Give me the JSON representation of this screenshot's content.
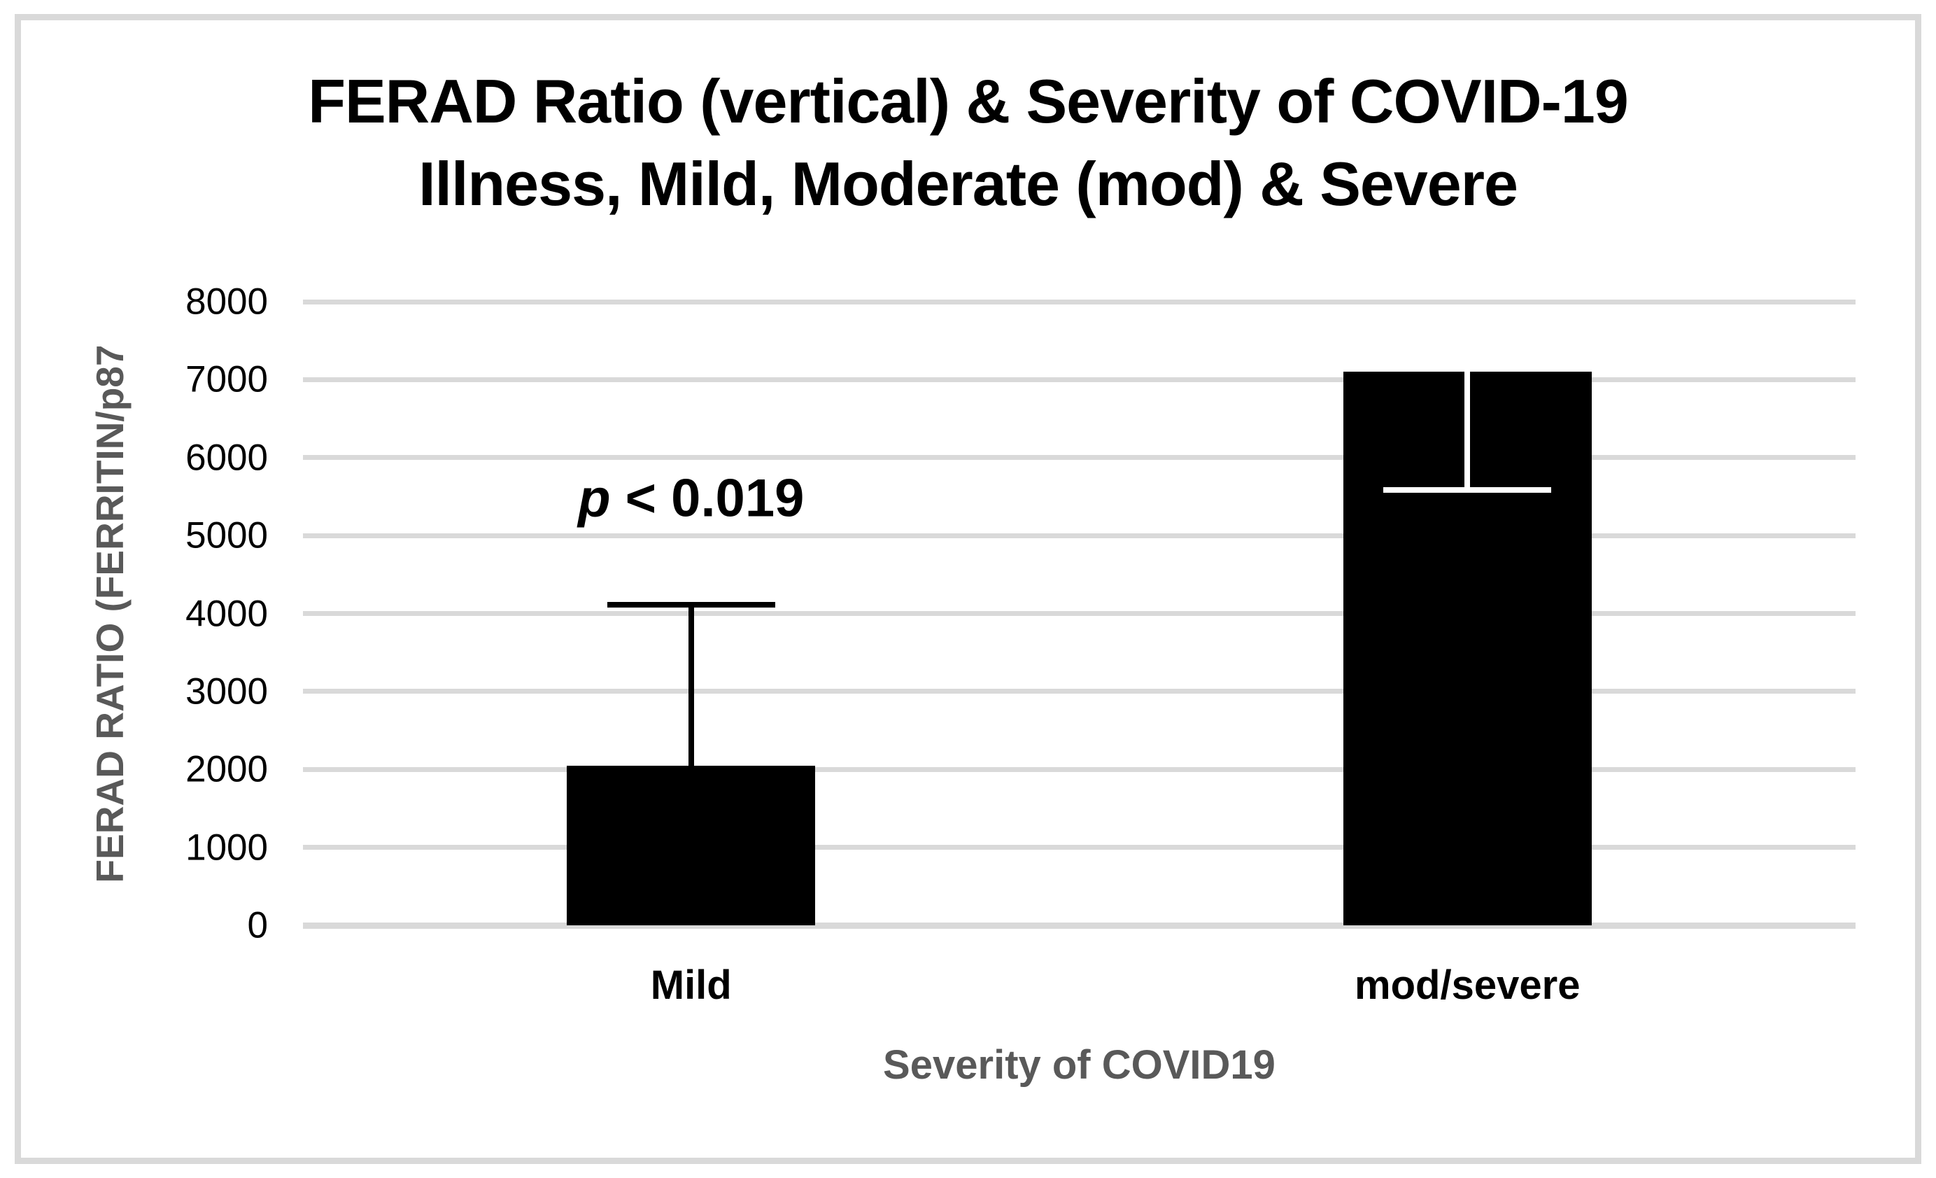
{
  "chart_data": {
    "type": "bar",
    "title_lines": [
      "FERAD Ratio (vertical) & Severity of COVID-19",
      "Illness, Mild, Moderate (mod) & Severe"
    ],
    "xlabel": "Severity of COVID19",
    "ylabel": "FERAD RATIO (FERRITIN/p87",
    "categories": [
      "Mild",
      "mod/severe"
    ],
    "values": [
      2050,
      7100
    ],
    "error_bars": [
      {
        "cap_value": 4150,
        "direction": "up",
        "color": "#000000"
      },
      {
        "cap_value": 5550,
        "direction": "down",
        "color": "#ffffff"
      }
    ],
    "annotation": {
      "italic_part": "p",
      "rest_part": " < 0.019",
      "anchor_category": 0,
      "anchor_value": 5480
    },
    "ylim": [
      0,
      8000
    ],
    "yticks": [
      0,
      1000,
      2000,
      3000,
      4000,
      5000,
      6000,
      7000,
      8000
    ],
    "grid": true,
    "legend": false,
    "bar_color": "#000000",
    "gridline_color": "#d9d9d9",
    "axis_text_color": "#595959"
  }
}
